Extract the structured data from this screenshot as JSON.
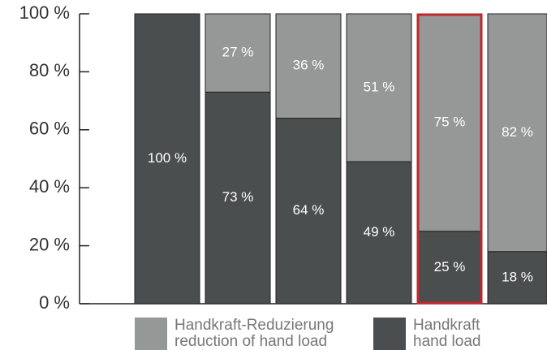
{
  "chart_data": {
    "type": "stacked-bar",
    "categories": [
      null,
      null,
      null,
      null,
      null,
      null
    ],
    "series": [
      {
        "name": "Handkraft",
        "translation": "hand load",
        "color": "#4b4e4f",
        "values": [
          100,
          73,
          64,
          49,
          25,
          18
        ],
        "value_labels": [
          "100 %",
          "73 %",
          "64 %",
          "49 %",
          "25 %",
          "18 %"
        ]
      },
      {
        "name": "Handkraft-Reduzierung",
        "translation": "reduction of hand load",
        "color": "#959897",
        "values": [
          null,
          27,
          36,
          51,
          75,
          82
        ],
        "value_labels": [
          null,
          "27 %",
          "36 %",
          "51 %",
          "75 %",
          "82 %"
        ]
      }
    ],
    "ylim": [
      0,
      100
    ],
    "yticks": [
      {
        "value": 0,
        "label": "0 %"
      },
      {
        "value": 20,
        "label": "20 %"
      },
      {
        "value": 40,
        "label": "40 %"
      },
      {
        "value": 60,
        "label": "60 %"
      },
      {
        "value": 80,
        "label": "80 %"
      },
      {
        "value": 100,
        "label": "100 %"
      }
    ],
    "highlight": 4,
    "highlight_color": "#c0272d"
  }
}
